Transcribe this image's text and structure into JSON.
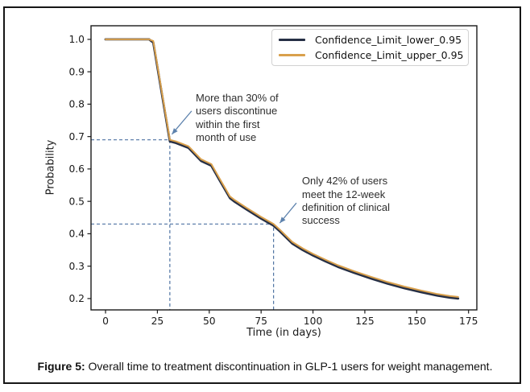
{
  "figure": {
    "caption_label": "Figure 5:",
    "caption_text": " Overall time to treatment discontinuation in GLP-1 users for weight management."
  },
  "chart_data": {
    "type": "line",
    "title": "",
    "xlabel": "Time (in days)",
    "ylabel": "Probability",
    "xlim": [
      -7,
      179
    ],
    "ylim": [
      0.165,
      1.042
    ],
    "xticks": [
      0,
      25,
      50,
      75,
      100,
      125,
      150,
      175
    ],
    "yticks": [
      0.2,
      0.3,
      0.4,
      0.5,
      0.6,
      0.7,
      0.8,
      0.9,
      1.0
    ],
    "grid": false,
    "legend_position": "upper right",
    "x": [
      0,
      21,
      23,
      31,
      34,
      40,
      46,
      51,
      55,
      60,
      62,
      68,
      75,
      81,
      84,
      90,
      95,
      100,
      106,
      112,
      120,
      128,
      136,
      144,
      152,
      160,
      166,
      170
    ],
    "series": [
      {
        "name": "Confidence_Limit_lower_0.95",
        "color": "#262f45",
        "y": [
          1.0,
          1.0,
          0.99,
          0.685,
          0.68,
          0.665,
          0.625,
          0.61,
          0.565,
          0.51,
          0.5,
          0.475,
          0.447,
          0.425,
          0.408,
          0.37,
          0.35,
          0.333,
          0.315,
          0.298,
          0.279,
          0.262,
          0.246,
          0.232,
          0.22,
          0.209,
          0.203,
          0.2
        ]
      },
      {
        "name": "Confidence_Limit_upper_0.95",
        "color": "#d9a04c",
        "y": [
          1.0,
          1.0,
          0.995,
          0.69,
          0.685,
          0.67,
          0.63,
          0.615,
          0.57,
          0.515,
          0.505,
          0.48,
          0.452,
          0.43,
          0.413,
          0.375,
          0.355,
          0.338,
          0.32,
          0.303,
          0.284,
          0.267,
          0.251,
          0.237,
          0.225,
          0.214,
          0.208,
          0.205
        ]
      }
    ],
    "reference_lines": [
      {
        "x": 31,
        "y": 0.69
      },
      {
        "x": 81,
        "y": 0.43
      }
    ],
    "annotations": [
      {
        "text": "More than 30% of\nusers discontinue\nwithin the first\nmonth of use",
        "xy": [
          32,
          0.707
        ],
        "arrow_start": [
          41.5,
          0.779
        ],
        "xytext": [
          43.5,
          0.838
        ]
      },
      {
        "text": "Only 42% of users\nmeet the 12-week\ndefinition of clinical\nsuccess",
        "xy": [
          84,
          0.433
        ],
        "arrow_start": [
          92,
          0.495
        ],
        "xytext": [
          94.7,
          0.582
        ]
      }
    ],
    "colors": {
      "reference_line": "#4e73a2",
      "arrow": "#5d82ad",
      "axis": "#1a1a1a"
    }
  }
}
